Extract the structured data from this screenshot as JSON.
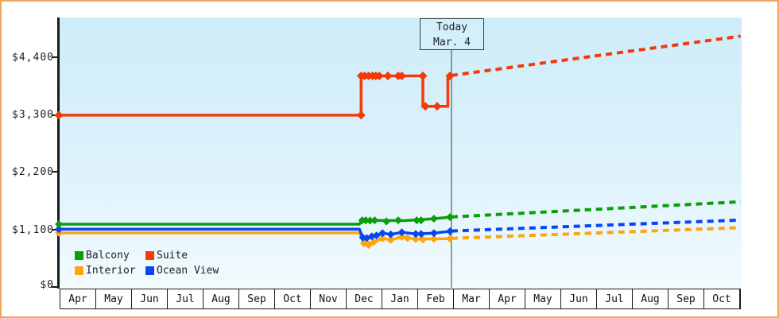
{
  "chart_data": {
    "type": "line",
    "title": "",
    "categories": [
      "Apr",
      "May",
      "Jun",
      "Jul",
      "Aug",
      "Sep",
      "Oct",
      "Nov",
      "Dec",
      "Jan",
      "Feb",
      "Mar",
      "Apr",
      "May",
      "Jun",
      "Jul",
      "Aug",
      "Sep",
      "Oct"
    ],
    "y_ticks": [
      {
        "label": "$4,400",
        "value": 4400
      },
      {
        "label": "$3,300",
        "value": 3300
      },
      {
        "label": "$2,200",
        "value": 2200
      },
      {
        "label": "$1,100",
        "value": 1100
      },
      {
        "label": "$0",
        "value": 0
      }
    ],
    "ylim": [
      0,
      4700
    ],
    "legend_position": "bottom-left",
    "today": {
      "x": 11,
      "label_line1": "Today",
      "label_line2": "Mar. 4"
    },
    "series": [
      {
        "name": "Suite",
        "color": "#f53908",
        "marker_size": 5.5,
        "points": [
          [
            0,
            3300
          ],
          [
            8.47,
            3300
          ],
          [
            8.47,
            4050
          ],
          [
            10.2,
            4050
          ],
          [
            10.2,
            3470
          ],
          [
            10.9,
            3470
          ],
          [
            10.9,
            4050
          ],
          [
            10.96,
            4050
          ]
        ],
        "markers": [
          [
            0,
            3300
          ],
          [
            8.47,
            3300
          ],
          [
            8.47,
            4050
          ],
          [
            8.57,
            4050
          ],
          [
            8.68,
            4050
          ],
          [
            8.79,
            4050
          ],
          [
            8.88,
            4050
          ],
          [
            8.98,
            4050
          ],
          [
            9.22,
            4050
          ],
          [
            9.51,
            4050
          ],
          [
            9.61,
            4050
          ],
          [
            10.2,
            4050
          ],
          [
            10.27,
            3470
          ],
          [
            10.6,
            3470
          ],
          [
            10.96,
            4050
          ]
        ],
        "forecast": [
          [
            11,
            4060
          ],
          [
            19.1,
            4810
          ]
        ]
      },
      {
        "name": "Interior",
        "color": "#ffa40a",
        "marker_size": 5,
        "points": [
          [
            0,
            1050
          ],
          [
            8.42,
            1050
          ],
          [
            8.55,
            850
          ],
          [
            8.68,
            820
          ],
          [
            8.82,
            875
          ],
          [
            9.07,
            945
          ],
          [
            9.3,
            915
          ],
          [
            9.61,
            975
          ],
          [
            10.0,
            930
          ],
          [
            10.51,
            935
          ],
          [
            10.96,
            940
          ]
        ],
        "markers": [
          [
            0,
            1050
          ],
          [
            8.55,
            850
          ],
          [
            8.68,
            820
          ],
          [
            8.82,
            875
          ],
          [
            9.07,
            945
          ],
          [
            9.3,
            915
          ],
          [
            9.61,
            975
          ],
          [
            9.77,
            950
          ],
          [
            10.0,
            930
          ],
          [
            10.2,
            925
          ],
          [
            10.51,
            935
          ],
          [
            10.96,
            940
          ]
        ],
        "forecast": [
          [
            11,
            945
          ],
          [
            19.1,
            1150
          ]
        ]
      },
      {
        "name": "Ocean View",
        "color": "#0a46f0",
        "marker_size": 5,
        "points": [
          [
            0,
            1120
          ],
          [
            8.42,
            1120
          ],
          [
            8.52,
            960
          ],
          [
            8.63,
            950
          ],
          [
            8.77,
            985
          ],
          [
            8.9,
            1000
          ],
          [
            9.07,
            1045
          ],
          [
            9.3,
            1020
          ],
          [
            9.61,
            1060
          ],
          [
            10.0,
            1030
          ],
          [
            10.51,
            1045
          ],
          [
            10.96,
            1080
          ]
        ],
        "markers": [
          [
            0,
            1120
          ],
          [
            8.52,
            960
          ],
          [
            8.63,
            950
          ],
          [
            8.77,
            985
          ],
          [
            8.9,
            1000
          ],
          [
            9.07,
            1045
          ],
          [
            9.3,
            1020
          ],
          [
            9.61,
            1060
          ],
          [
            10.0,
            1030
          ],
          [
            10.15,
            1030
          ],
          [
            10.51,
            1045
          ],
          [
            10.96,
            1080
          ]
        ],
        "forecast": [
          [
            11,
            1085
          ],
          [
            19.1,
            1295
          ]
        ]
      },
      {
        "name": "Balcony",
        "color": "#0b9e0b",
        "marker_size": 5,
        "points": [
          [
            0,
            1215
          ],
          [
            8.42,
            1215
          ],
          [
            8.5,
            1290
          ],
          [
            9.7,
            1285
          ],
          [
            10.51,
            1320
          ],
          [
            10.96,
            1350
          ]
        ],
        "markers": [
          [
            0,
            1215
          ],
          [
            8.5,
            1290
          ],
          [
            8.6,
            1290
          ],
          [
            8.72,
            1285
          ],
          [
            8.85,
            1290
          ],
          [
            9.18,
            1270
          ],
          [
            9.51,
            1290
          ],
          [
            10.03,
            1290
          ],
          [
            10.15,
            1290
          ],
          [
            10.51,
            1320
          ],
          [
            10.96,
            1350
          ]
        ],
        "forecast": [
          [
            11,
            1355
          ],
          [
            19.1,
            1645
          ]
        ]
      }
    ]
  },
  "legend": {
    "items": [
      {
        "label": "Balcony",
        "color": "#0b9e0b"
      },
      {
        "label": "Suite",
        "color": "#f53908"
      },
      {
        "label": "Interior",
        "color": "#ffa40a"
      },
      {
        "label": "Ocean View",
        "color": "#0a46f0"
      }
    ]
  },
  "colors": {
    "frame_border": "#eda65c",
    "plot_top": "#cdedfa",
    "plot_bottom": "#f2fbfe",
    "axis": "#1a1a1a",
    "today_line": "#3c3c3c"
  }
}
